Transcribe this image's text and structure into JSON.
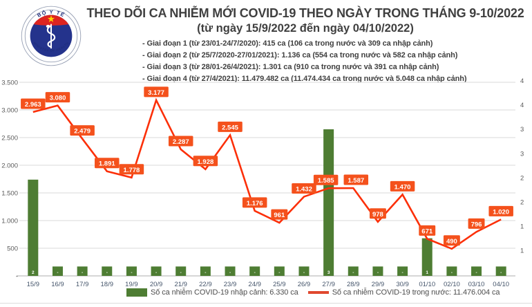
{
  "header": {
    "logo": {
      "top_text": "BỘ Y TẾ",
      "bottom_text": "MINISTRY OF HEALTH"
    },
    "title_line1": "THEO DÕI CA NHIỄM MỚI COVID-19 THEO NGÀY TRONG THÁNG 9-10/2022",
    "title_line2": "(từ ngày 15/9/2022 đến ngày 04/10/2022)",
    "phases": [
      "- Giai đoạn 1 (từ 23/01-24/7/2020): 415 ca (106 ca trong nước và 309 ca nhập cảnh)",
      "- Giai đoạn 2 (từ 25/7/2020-27/01/2021): 1.136 ca (554 ca trong nước và 582 ca nhập cảnh)",
      "- Giai đoạn 3 (từ 28/01-26/4/2021): 1.301 ca (910 ca trong nước và 391 ca nhập cảnh)",
      "- Giai đoạn 4 (từ 27/4/2021): 11.479.482 ca (11.474.434 ca trong nước và 5.048 ca nhập cảnh)"
    ]
  },
  "chart_data": {
    "type": "combo",
    "categories": [
      "15/9",
      "16/9",
      "17/9",
      "18/9",
      "19/9",
      "20/9",
      "21/9",
      "22/9",
      "23/9",
      "24/9",
      "25/9",
      "26/9",
      "27/9",
      "28/9",
      "29/9",
      "30/9",
      "01/10",
      "02/10",
      "03/10",
      "04/10"
    ],
    "series": [
      {
        "name": "Số ca nhiễm COVID-19 nhập cảnh",
        "type": "bar",
        "color": "#4e7d33",
        "values_est": [
          1740,
          170,
          170,
          170,
          170,
          170,
          170,
          170,
          170,
          170,
          170,
          170,
          2650,
          170,
          170,
          170,
          680,
          170,
          170,
          170
        ],
        "inner_labels": [
          "2",
          "-",
          "-",
          "-",
          "-",
          "-",
          "-",
          "-",
          "-",
          "-",
          "-",
          "-",
          "3",
          "-",
          "-",
          "-",
          "1",
          "-",
          "-",
          "-"
        ]
      },
      {
        "name": "Số ca nhiễm COVID-19 trong nước",
        "type": "line",
        "color": "#fc2f08",
        "values": [
          2963,
          3080,
          2479,
          1891,
          1778,
          3177,
          2287,
          1928,
          2545,
          1176,
          961,
          1432,
          1585,
          1587,
          978,
          1470,
          671,
          490,
          796,
          1020
        ],
        "labels": [
          "2.963",
          "3.080",
          "2.479",
          "1.891",
          "1.778",
          "3.177",
          "2.287",
          "1.928",
          "2.545",
          "1.176",
          "961",
          "1.432",
          "1.585",
          "1.587",
          "978",
          "1.470",
          "671",
          "490",
          "796",
          "1.020"
        ]
      }
    ],
    "y_axis_left": {
      "min": 0,
      "max": 3500,
      "tick_labels": [
        "3.500",
        "3.000",
        "2.500",
        "2.000",
        "1.500",
        "1.000",
        "500",
        "-"
      ],
      "grid": true
    },
    "y_axis_right_clipped_ticks": [
      "4",
      "4",
      "3",
      "3",
      "2",
      "2",
      "1",
      "1"
    ],
    "legend": [
      {
        "swatch": "bar",
        "color": "#4e7d33",
        "label": "Số ca nhiễm COVID-19 nhập cảnh: 6.330 ca"
      },
      {
        "swatch": "line",
        "color": "#e0482e",
        "label": "Số ca nhiễm COVID-19 trong nước: 11.476.004 ca"
      }
    ],
    "data_label_box_color": "#f4511c",
    "legend_position": "bottom"
  }
}
